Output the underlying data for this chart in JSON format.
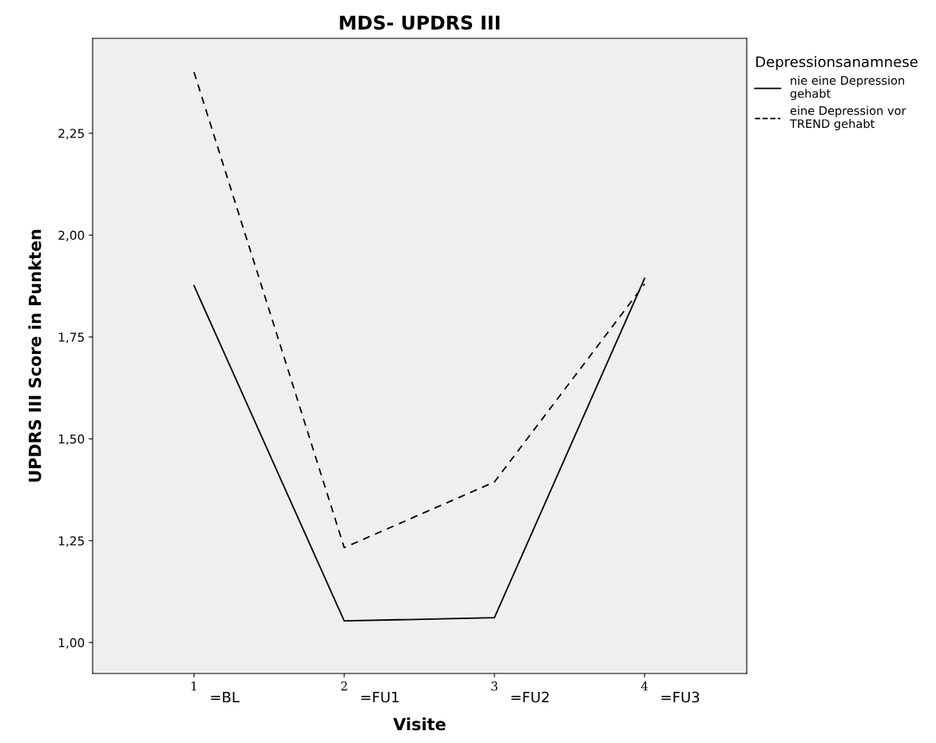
{
  "chart_data": {
    "type": "line",
    "title": "MDS- UPDRS III",
    "xlabel": "Visite",
    "ylabel": "UPDRS III Score in Punkten",
    "legend_title": "Depressionsanamnese",
    "x": [
      1,
      2,
      3,
      4
    ],
    "series": [
      {
        "name": "nie eine Depression\ngehabt",
        "color": "#000000",
        "line_style": "solid",
        "values": [
          1.876,
          1.053,
          1.061,
          1.894
        ]
      },
      {
        "name": "eine Depression vor\nTREND gehabt",
        "color": "#000000",
        "line_style": "dashed",
        "values": [
          2.4,
          1.233,
          1.394,
          1.88
        ]
      }
    ],
    "xlim": [
      0.325,
      4.68
    ],
    "xticks": [
      1,
      2,
      3,
      4
    ],
    "ylim": [
      0.924,
      2.483
    ],
    "yticks": [
      {
        "value": 1.0,
        "label": "1,00"
      },
      {
        "value": 1.25,
        "label": "1,25"
      },
      {
        "value": 1.5,
        "label": "1,50"
      },
      {
        "value": 1.75,
        "label": "1,75"
      },
      {
        "value": 2.0,
        "label": "2,00"
      },
      {
        "value": 2.25,
        "label": "2,25"
      }
    ],
    "annotations": [
      "=BL",
      "=FU1",
      "=FU2",
      "=FU3"
    ],
    "grid": false,
    "legend": "right",
    "marker": "none"
  }
}
